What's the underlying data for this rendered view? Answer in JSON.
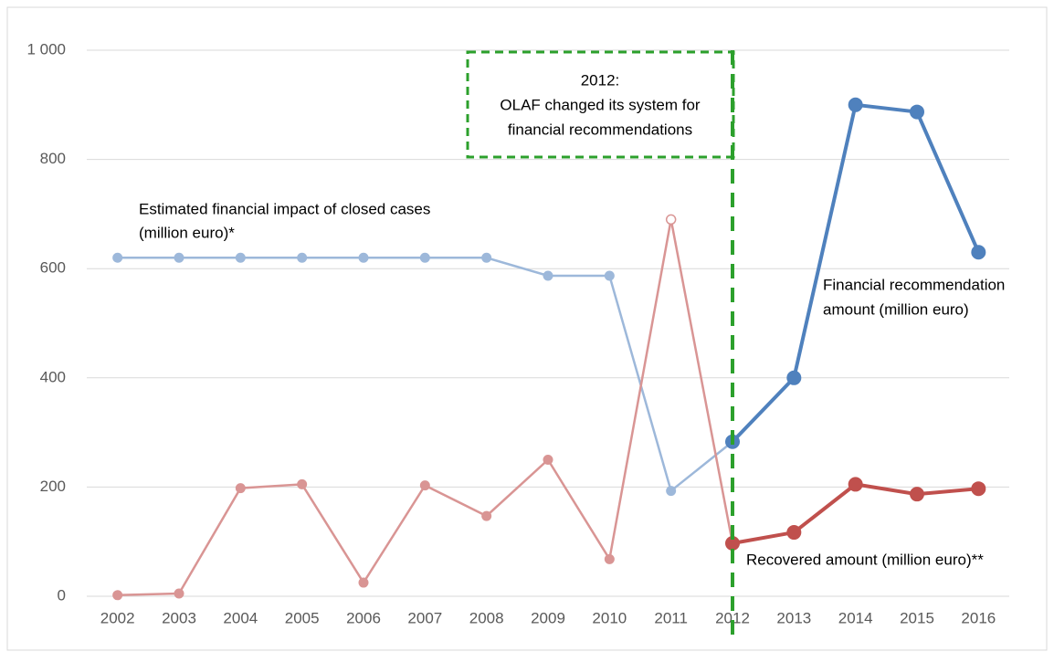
{
  "chart_data": {
    "type": "line",
    "categories": [
      "2002",
      "2003",
      "2004",
      "2005",
      "2006",
      "2007",
      "2008",
      "2009",
      "2010",
      "2011",
      "2012",
      "2013",
      "2014",
      "2015",
      "2016"
    ],
    "series": [
      {
        "name": "Estimated financial impact of closed cases (million euro)*",
        "color": "#9db8da",
        "style": "thin",
        "values": [
          620,
          620,
          620,
          620,
          620,
          620,
          620,
          587,
          587,
          193,
          null,
          null,
          null,
          null,
          null
        ]
      },
      {
        "name": "Financial recommendation amount (million euro)",
        "color": "#4f81bd",
        "style": "bold",
        "values": [
          null,
          null,
          null,
          null,
          null,
          null,
          null,
          null,
          null,
          null,
          283,
          400,
          900,
          887,
          630
        ]
      },
      {
        "name": "Recovered amount (million euro)**",
        "color": "#d99594",
        "style": "thin",
        "hollow_markers": [
          "2011"
        ],
        "values": [
          2,
          5,
          198,
          205,
          25,
          203,
          147,
          250,
          68,
          690,
          null,
          null,
          null,
          null,
          null
        ]
      },
      {
        "name": "Recovered amount (million euro)**",
        "color": "#c0504d",
        "style": "bold",
        "values": [
          null,
          null,
          null,
          null,
          null,
          null,
          null,
          null,
          null,
          null,
          97,
          117,
          205,
          187,
          197
        ]
      }
    ],
    "ylim": [
      0,
      1000
    ],
    "yticks": [
      0,
      200,
      400,
      600,
      800,
      {
        "value": 1000,
        "label": "1 000"
      }
    ],
    "grid": true,
    "annotations": [
      {
        "lines": [
          "Estimated financial impact of closed cases",
          "(million euro)*"
        ]
      },
      {
        "lines": [
          "Financial recommendation",
          "amount (million euro)"
        ]
      },
      {
        "lines": [
          "Recovered amount (million euro)**"
        ]
      },
      {
        "lines": [
          "2012:",
          "OLAF changed its system for",
          "financial recommendations"
        ],
        "color": "#2ca02c",
        "marker_category": "2012"
      }
    ]
  }
}
